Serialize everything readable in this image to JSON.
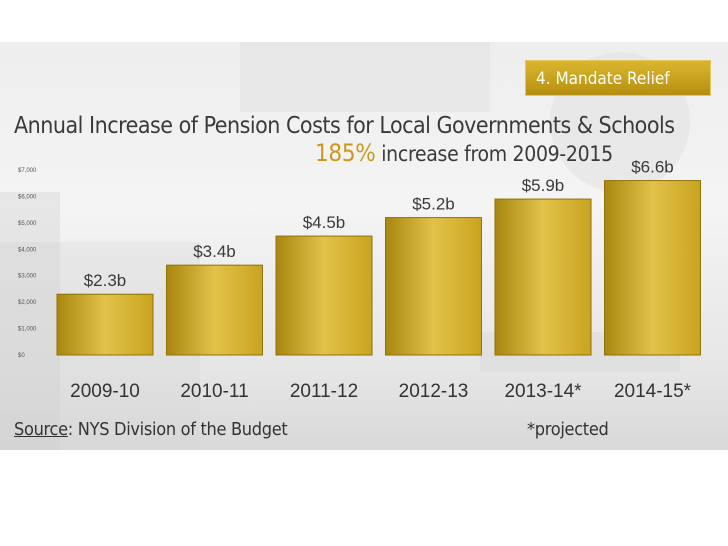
{
  "badge": {
    "label": "4. Mandate Relief"
  },
  "title": "Annual Increase of Pension Costs for Local Governments & Schools",
  "subtitle": {
    "pct": "185%",
    "rest": "increase from 2009-2015"
  },
  "source": {
    "label": "Source",
    "text": ": NYS Division of the Budget"
  },
  "note": "*projected",
  "colors": {
    "bar": "#c9a41f",
    "bar_light": "#e2c24a",
    "bar_dark": "#a8870f",
    "accent": "#c99a1a"
  },
  "chart_data": {
    "type": "bar",
    "categories": [
      "2009-10",
      "2010-11",
      "2011-12",
      "2012-13",
      "2013-14*",
      "2014-15*"
    ],
    "values": [
      2.3,
      3.4,
      4.5,
      5.2,
      5.9,
      6.6
    ],
    "data_labels": [
      "$2.3b",
      "$3.4b",
      "$4.5b",
      "$5.2b",
      "$5.9b",
      "$6.6b"
    ],
    "y_ticks": [
      {
        "value": 0,
        "label": "$0"
      },
      {
        "value": 1,
        "label": "$1,000"
      },
      {
        "value": 2,
        "label": "$2,000"
      },
      {
        "value": 3,
        "label": "$3,000"
      },
      {
        "value": 4,
        "label": "$4,000"
      },
      {
        "value": 5,
        "label": "$5,000"
      },
      {
        "value": 6,
        "label": "$6,000"
      },
      {
        "value": 7,
        "label": "$7,000"
      }
    ],
    "ylim": [
      0,
      7
    ],
    "grid": false,
    "legend": "none"
  }
}
